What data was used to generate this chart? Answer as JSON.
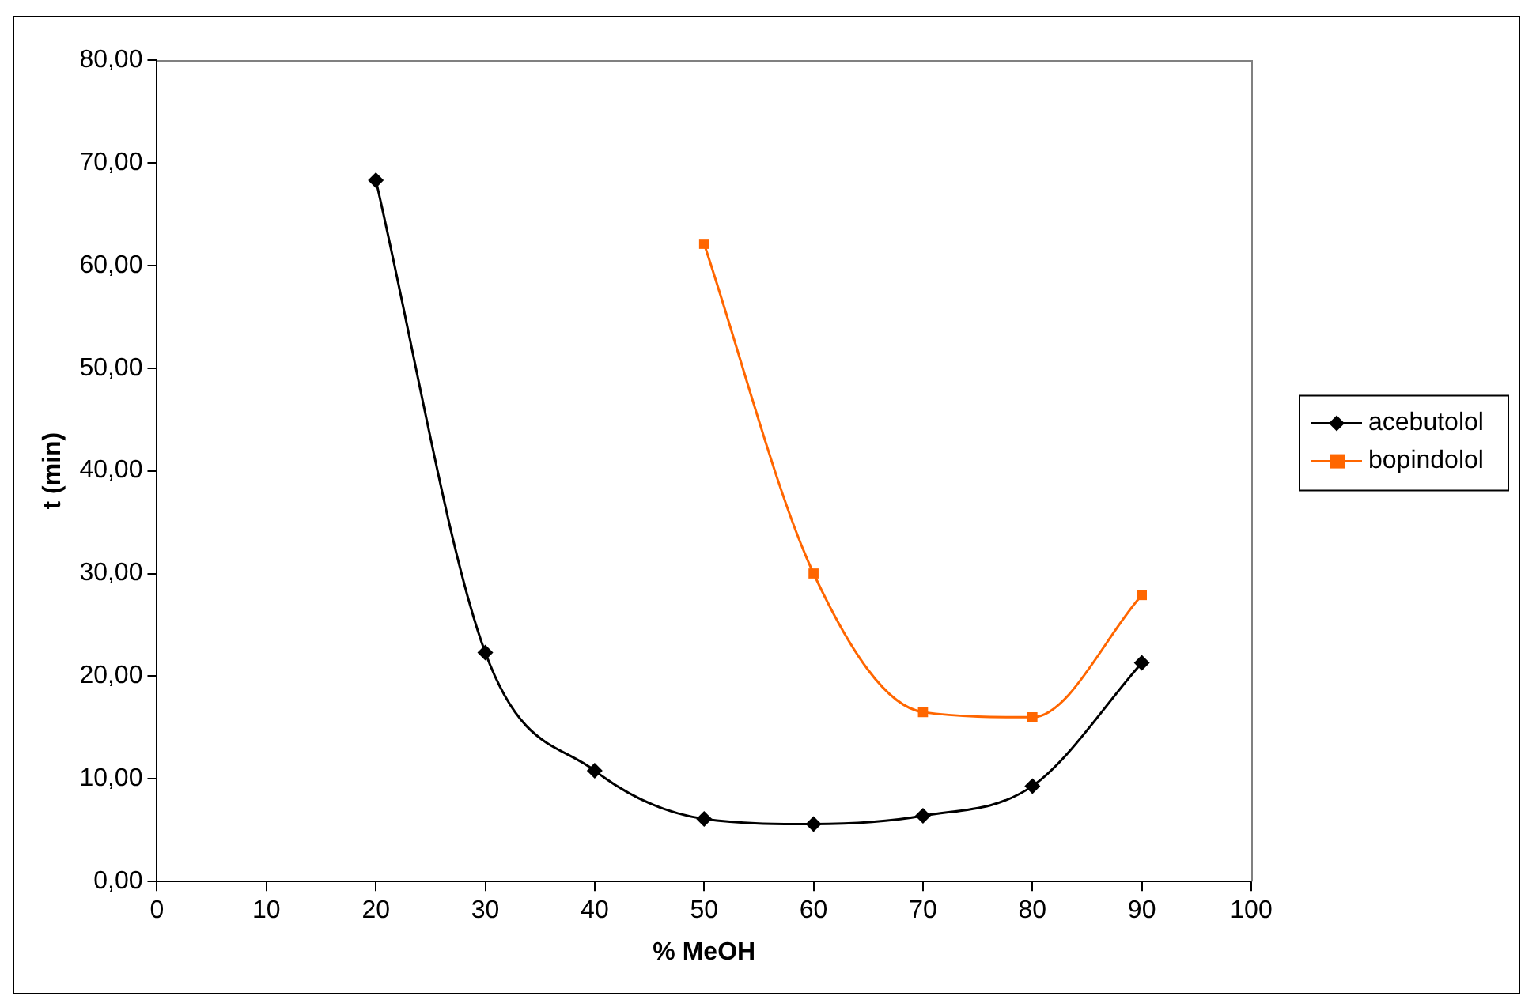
{
  "chart_data": {
    "type": "line",
    "xlabel": "% MeOH",
    "ylabel": "t (min)",
    "xlim": [
      0,
      100
    ],
    "xticks": [
      0,
      10,
      20,
      30,
      40,
      50,
      60,
      70,
      80,
      90,
      100
    ],
    "ylim": [
      0,
      80
    ],
    "yticks": [
      {
        "value": 0,
        "label": "0,00"
      },
      {
        "value": 10,
        "label": "10,00"
      },
      {
        "value": 20,
        "label": "20,00"
      },
      {
        "value": 30,
        "label": "30,00"
      },
      {
        "value": 40,
        "label": "40,00"
      },
      {
        "value": 50,
        "label": "50,00"
      },
      {
        "value": 60,
        "label": "60,00"
      },
      {
        "value": 70,
        "label": "70,00"
      },
      {
        "value": 80,
        "label": "80,00"
      }
    ],
    "grid": false,
    "legend": "right",
    "series": [
      {
        "name": "acebutolol",
        "color": "#000000",
        "marker": "diamond",
        "x": [
          20,
          30,
          40,
          50,
          60,
          70,
          80,
          90
        ],
        "values": [
          68.3,
          22.3,
          10.8,
          6.1,
          5.6,
          6.4,
          9.3,
          21.3
        ]
      },
      {
        "name": "bopindolol",
        "color": "#ff6600",
        "marker": "square",
        "x": [
          50,
          60,
          70,
          80,
          90
        ],
        "values": [
          62.1,
          30.0,
          16.5,
          16.0,
          27.9
        ]
      }
    ]
  }
}
